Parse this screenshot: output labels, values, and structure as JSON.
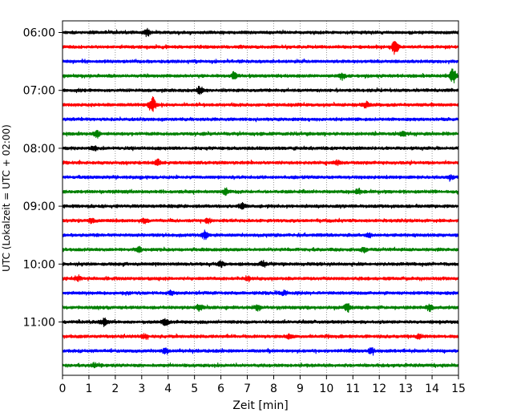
{
  "chart_data": {
    "type": "line",
    "title": "",
    "xlabel": "Zeit  [min]",
    "ylabel": "UTC (Lokalzeit = UTC + 02:00)",
    "xlim": [
      0,
      15
    ],
    "x_ticks": [
      "0",
      "1",
      "2",
      "3",
      "4",
      "5",
      "6",
      "7",
      "8",
      "9",
      "10",
      "11",
      "12",
      "13",
      "14",
      "15"
    ],
    "y_ticks": [
      "06:00",
      "07:00",
      "08:00",
      "09:00",
      "10:00",
      "11:00"
    ],
    "grid": "vertical dotted at each minute",
    "trace_interval_min": 15,
    "start_time": "06:00",
    "trace_colors": [
      "#000000",
      "#ff0000",
      "#0000ff",
      "#008000"
    ],
    "traces": [
      {
        "time": "06:00",
        "color": "#000000",
        "events": [
          [
            3.2,
            0.8
          ]
        ]
      },
      {
        "time": "06:15",
        "color": "#ff0000",
        "events": [
          [
            12.6,
            2.2
          ]
        ]
      },
      {
        "time": "06:30",
        "color": "#0000ff",
        "events": []
      },
      {
        "time": "06:45",
        "color": "#008000",
        "events": [
          [
            6.5,
            0.8
          ],
          [
            10.6,
            0.8
          ],
          [
            14.8,
            2.0
          ]
        ]
      },
      {
        "time": "07:00",
        "color": "#000000",
        "events": [
          [
            5.2,
            1.0
          ]
        ]
      },
      {
        "time": "07:15",
        "color": "#ff0000",
        "events": [
          [
            3.4,
            2.4
          ],
          [
            11.5,
            0.8
          ]
        ]
      },
      {
        "time": "07:30",
        "color": "#0000ff",
        "events": []
      },
      {
        "time": "07:45",
        "color": "#008000",
        "events": [
          [
            1.3,
            0.7
          ],
          [
            12.9,
            0.6
          ]
        ]
      },
      {
        "time": "08:00",
        "color": "#000000",
        "events": [
          [
            1.2,
            0.6
          ]
        ]
      },
      {
        "time": "08:15",
        "color": "#ff0000",
        "events": [
          [
            3.6,
            0.8
          ],
          [
            10.4,
            0.6
          ]
        ]
      },
      {
        "time": "08:30",
        "color": "#0000ff",
        "events": [
          [
            14.7,
            0.5
          ]
        ]
      },
      {
        "time": "08:45",
        "color": "#008000",
        "events": [
          [
            6.2,
            0.9
          ],
          [
            11.2,
            0.7
          ]
        ]
      },
      {
        "time": "09:00",
        "color": "#000000",
        "events": [
          [
            6.8,
            0.7
          ]
        ]
      },
      {
        "time": "09:15",
        "color": "#ff0000",
        "events": [
          [
            1.1,
            0.7
          ],
          [
            3.1,
            0.6
          ],
          [
            5.5,
            0.6
          ]
        ]
      },
      {
        "time": "09:30",
        "color": "#0000ff",
        "events": [
          [
            5.4,
            1.0
          ],
          [
            11.6,
            0.5
          ]
        ]
      },
      {
        "time": "09:45",
        "color": "#008000",
        "events": [
          [
            2.9,
            0.7
          ],
          [
            11.4,
            0.6
          ]
        ]
      },
      {
        "time": "10:00",
        "color": "#000000",
        "events": [
          [
            6.0,
            0.8
          ],
          [
            7.6,
            0.8
          ]
        ]
      },
      {
        "time": "10:15",
        "color": "#ff0000",
        "events": [
          [
            0.6,
            0.5
          ],
          [
            7.0,
            0.5
          ]
        ]
      },
      {
        "time": "10:30",
        "color": "#0000ff",
        "events": [
          [
            4.1,
            0.5
          ],
          [
            8.4,
            0.5
          ]
        ]
      },
      {
        "time": "10:45",
        "color": "#008000",
        "events": [
          [
            5.2,
            0.9
          ],
          [
            7.4,
            0.7
          ],
          [
            10.8,
            1.2
          ],
          [
            13.9,
            0.9
          ]
        ]
      },
      {
        "time": "11:00",
        "color": "#000000",
        "events": [
          [
            1.6,
            1.0
          ],
          [
            3.9,
            0.8
          ]
        ]
      },
      {
        "time": "11:15",
        "color": "#ff0000",
        "events": [
          [
            3.1,
            0.6
          ],
          [
            8.6,
            0.6
          ],
          [
            13.5,
            0.6
          ]
        ]
      },
      {
        "time": "11:30",
        "color": "#0000ff",
        "events": [
          [
            11.7,
            0.8
          ],
          [
            3.9,
            0.6
          ]
        ]
      },
      {
        "time": "11:45",
        "color": "#008000",
        "events": [
          [
            1.2,
            0.5
          ]
        ]
      }
    ]
  }
}
